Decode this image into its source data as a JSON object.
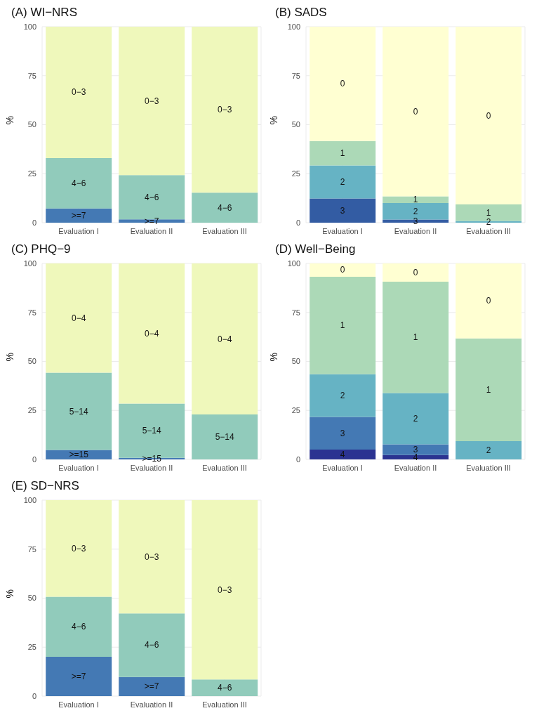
{
  "chart_data": [
    {
      "type": "bar",
      "title": "(A) WI−NRS",
      "ylabel": "%",
      "categories": [
        "Evaluation I",
        "Evaluation II",
        "Evaluation III"
      ],
      "stacked": true,
      "ylim": [
        0,
        100
      ],
      "yticks": [
        0,
        25,
        50,
        75,
        100
      ],
      "grid": true,
      "legend": false,
      "series": [
        {
          "name": ">=7",
          "color": "#4479b4",
          "values": [
            7.3,
            1.7,
            0
          ]
        },
        {
          "name": "4−6",
          "color": "#91cbbb",
          "values": [
            25.7,
            22.6,
            15.3
          ]
        },
        {
          "name": "0−3",
          "color": "#eff8bb",
          "values": [
            67.0,
            75.7,
            84.7
          ]
        }
      ]
    },
    {
      "type": "bar",
      "title": "(B) SADS",
      "ylabel": "%",
      "categories": [
        "Evaluation I",
        "Evaluation II",
        "Evaluation III"
      ],
      "stacked": true,
      "ylim": [
        0,
        100
      ],
      "yticks": [
        0,
        25,
        50,
        75,
        100
      ],
      "grid": true,
      "legend": false,
      "series": [
        {
          "name": "3",
          "color": "#335ca3",
          "values": [
            12.4,
            1.6,
            0
          ]
        },
        {
          "name": "2",
          "color": "#66b3c4",
          "values": [
            16.8,
            8.4,
            0.9
          ]
        },
        {
          "name": "1",
          "color": "#acd9b7",
          "values": [
            12.5,
            3.4,
            8.4
          ]
        },
        {
          "name": "0",
          "color": "#ffffd2",
          "values": [
            58.3,
            86.6,
            90.7
          ]
        }
      ]
    },
    {
      "type": "bar",
      "title": "(C) PHQ−9",
      "ylabel": "%",
      "categories": [
        "Evaluation I",
        "Evaluation II",
        "Evaluation III"
      ],
      "stacked": true,
      "ylim": [
        0,
        100
      ],
      "yticks": [
        0,
        25,
        50,
        75,
        100
      ],
      "grid": true,
      "legend": false,
      "series": [
        {
          "name": ">=15",
          "color": "#4479b4",
          "values": [
            4.8,
            0.8,
            0
          ]
        },
        {
          "name": "5−14",
          "color": "#91cbbb",
          "values": [
            39.5,
            27.7,
            22.9
          ]
        },
        {
          "name": "0−4",
          "color": "#eff8bb",
          "values": [
            55.7,
            71.5,
            77.1
          ]
        }
      ]
    },
    {
      "type": "bar",
      "title": "(D) Well−Being",
      "ylabel": "%",
      "categories": [
        "Evaluation I",
        "Evaluation II",
        "Evaluation III"
      ],
      "stacked": true,
      "ylim": [
        0,
        100
      ],
      "yticks": [
        0,
        25,
        50,
        75,
        100
      ],
      "grid": true,
      "legend": false,
      "series": [
        {
          "name": "4",
          "color": "#2b3391",
          "values": [
            5.0,
            2.2,
            0
          ]
        },
        {
          "name": "3",
          "color": "#4479b4",
          "values": [
            16.7,
            5.5,
            0
          ]
        },
        {
          "name": "2",
          "color": "#66b3c4",
          "values": [
            21.8,
            26.2,
            9.3
          ]
        },
        {
          "name": "1",
          "color": "#acd9b7",
          "values": [
            49.7,
            56.8,
            52.4
          ]
        },
        {
          "name": "0",
          "color": "#ffffd2",
          "values": [
            6.8,
            9.3,
            38.3
          ]
        }
      ]
    },
    {
      "type": "bar",
      "title": "(E) SD−NRS",
      "ylabel": "%",
      "categories": [
        "Evaluation I",
        "Evaluation II",
        "Evaluation III"
      ],
      "stacked": true,
      "ylim": [
        0,
        100
      ],
      "yticks": [
        0,
        25,
        50,
        75,
        100
      ],
      "grid": true,
      "legend": false,
      "series": [
        {
          "name": ">=7",
          "color": "#4479b4",
          "values": [
            20.1,
            9.8,
            0
          ]
        },
        {
          "name": "4−6",
          "color": "#91cbbb",
          "values": [
            30.6,
            32.4,
            8.5
          ]
        },
        {
          "name": "0−3",
          "color": "#eff8bb",
          "values": [
            49.3,
            57.8,
            91.5
          ]
        }
      ]
    }
  ]
}
